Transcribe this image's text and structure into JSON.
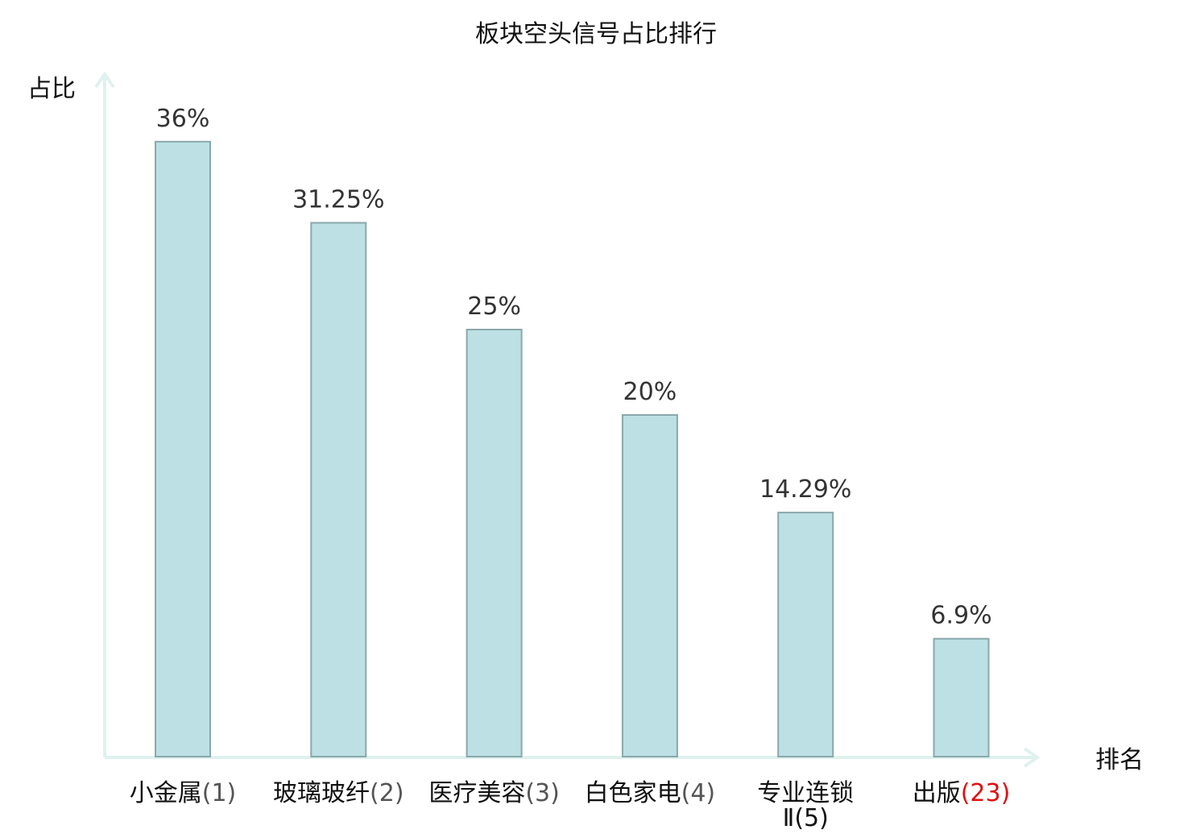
{
  "chart_data": {
    "type": "bar",
    "title": "板块空头信号占比排行",
    "ylabel": "占比",
    "xlabel": "排名",
    "categories": [
      {
        "name": "小金属",
        "rank": "(1)",
        "highlight": false
      },
      {
        "name": "玻璃玻纤",
        "rank": "(2)",
        "highlight": false
      },
      {
        "name": "医疗美容",
        "rank": "(3)",
        "highlight": false
      },
      {
        "name": "白色家电",
        "rank": "(4)",
        "highlight": false
      },
      {
        "name": "专业连锁",
        "name_line2": "Ⅱ",
        "rank": "(5)",
        "highlight": false
      },
      {
        "name": "出版",
        "rank": "(23)",
        "highlight": true
      }
    ],
    "values": [
      36,
      31.25,
      25,
      20,
      14.29,
      6.9
    ],
    "value_labels": [
      "36%",
      "31.25%",
      "25%",
      "20%",
      "14.29%",
      "6.9%"
    ],
    "ylim": [
      0,
      40
    ],
    "grid": false,
    "legend": false
  },
  "colors": {
    "bar_fill": "#bce0e3",
    "bar_stroke": "#8aa8ab",
    "axis": "#dff1ef",
    "highlight_text": "#e01010",
    "text": "#111111",
    "value_text": "#333333"
  }
}
